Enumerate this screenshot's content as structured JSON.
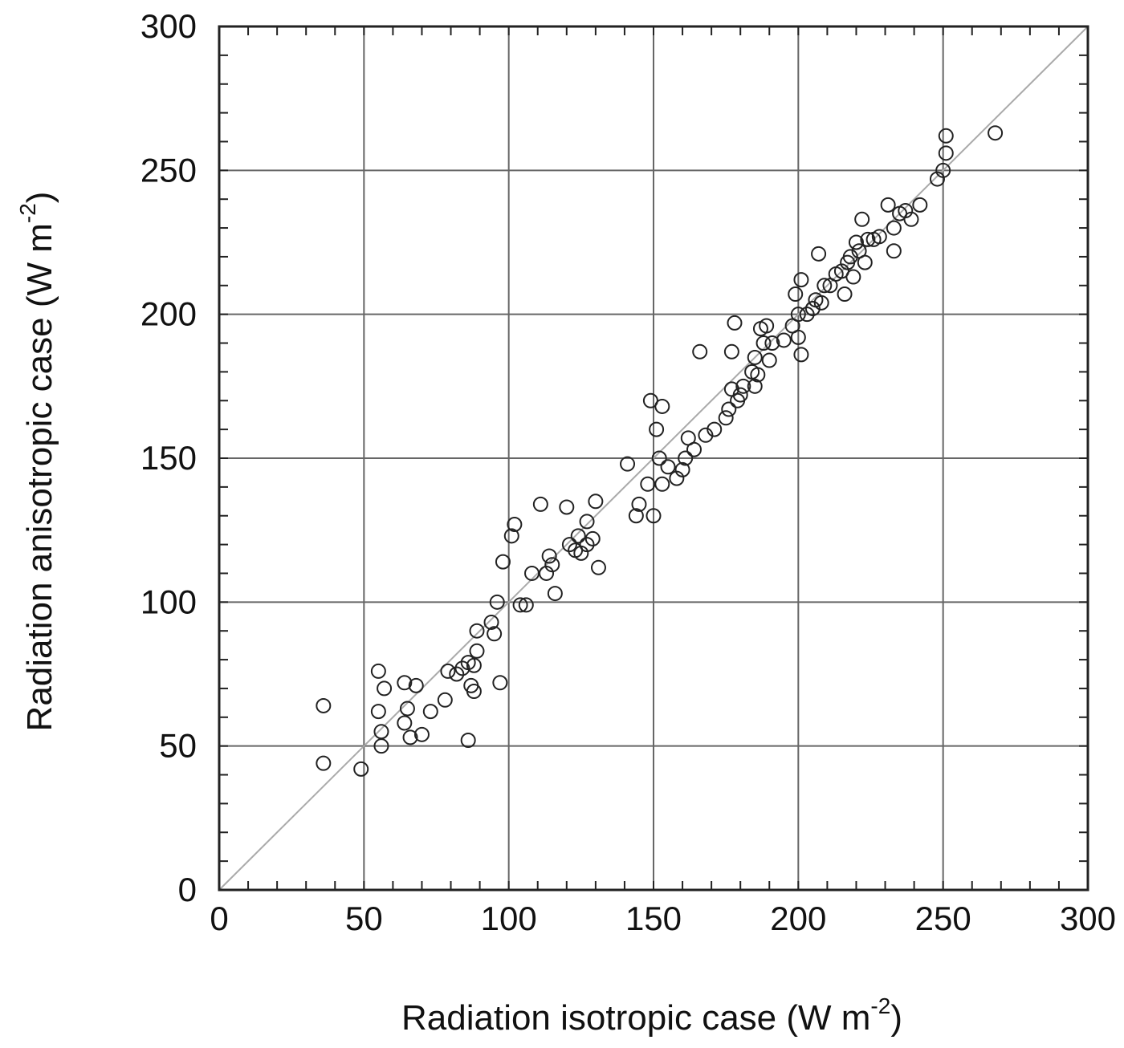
{
  "chart_data": {
    "type": "scatter",
    "xlabel": {
      "main": "Radiation isotropic case (W m",
      "sup": "-2",
      "close": ")"
    },
    "ylabel": {
      "main": "Radiation anisotropic case (W m",
      "sup": "-2",
      "close": ")"
    },
    "xlim": [
      0,
      300
    ],
    "ylim": [
      0,
      300
    ],
    "x_ticks": [
      0,
      50,
      100,
      150,
      200,
      250,
      300
    ],
    "y_ticks": [
      0,
      50,
      100,
      150,
      200,
      250,
      300
    ],
    "x_minor_step": 10,
    "y_minor_step": 10,
    "grid": true,
    "reference_line": "y = x",
    "marker": "open-circle",
    "colors": {
      "grid": "#666666",
      "frame": "#222222",
      "reference": "#aaaaaa",
      "marker": "#222222"
    },
    "points": [
      [
        36,
        64
      ],
      [
        36,
        44
      ],
      [
        49,
        42
      ],
      [
        55,
        76
      ],
      [
        55,
        62
      ],
      [
        56,
        55
      ],
      [
        56,
        50
      ],
      [
        57,
        70
      ],
      [
        64,
        72
      ],
      [
        64,
        58
      ],
      [
        65,
        63
      ],
      [
        66,
        53
      ],
      [
        68,
        71
      ],
      [
        70,
        54
      ],
      [
        73,
        62
      ],
      [
        78,
        66
      ],
      [
        79,
        76
      ],
      [
        82,
        75
      ],
      [
        84,
        77
      ],
      [
        86,
        52
      ],
      [
        86,
        79
      ],
      [
        87,
        71
      ],
      [
        88,
        78
      ],
      [
        88,
        69
      ],
      [
        89,
        90
      ],
      [
        89,
        83
      ],
      [
        94,
        93
      ],
      [
        95,
        89
      ],
      [
        96,
        100
      ],
      [
        97,
        72
      ],
      [
        98,
        114
      ],
      [
        101,
        123
      ],
      [
        102,
        127
      ],
      [
        104,
        99
      ],
      [
        106,
        99
      ],
      [
        108,
        110
      ],
      [
        111,
        134
      ],
      [
        113,
        110
      ],
      [
        114,
        116
      ],
      [
        115,
        113
      ],
      [
        116,
        103
      ],
      [
        120,
        133
      ],
      [
        121,
        120
      ],
      [
        123,
        118
      ],
      [
        124,
        123
      ],
      [
        125,
        117
      ],
      [
        127,
        128
      ],
      [
        127,
        120
      ],
      [
        129,
        122
      ],
      [
        130,
        135
      ],
      [
        131,
        112
      ],
      [
        141,
        148
      ],
      [
        144,
        130
      ],
      [
        145,
        134
      ],
      [
        148,
        141
      ],
      [
        149,
        170
      ],
      [
        150,
        130
      ],
      [
        151,
        160
      ],
      [
        152,
        150
      ],
      [
        153,
        141
      ],
      [
        153,
        168
      ],
      [
        155,
        147
      ],
      [
        158,
        143
      ],
      [
        160,
        146
      ],
      [
        161,
        150
      ],
      [
        162,
        157
      ],
      [
        164,
        153
      ],
      [
        166,
        187
      ],
      [
        168,
        158
      ],
      [
        171,
        160
      ],
      [
        175,
        164
      ],
      [
        176,
        167
      ],
      [
        177,
        174
      ],
      [
        177,
        187
      ],
      [
        178,
        197
      ],
      [
        179,
        170
      ],
      [
        180,
        172
      ],
      [
        181,
        175
      ],
      [
        184,
        180
      ],
      [
        185,
        175
      ],
      [
        185,
        185
      ],
      [
        186,
        179
      ],
      [
        187,
        195
      ],
      [
        188,
        190
      ],
      [
        189,
        196
      ],
      [
        190,
        184
      ],
      [
        191,
        190
      ],
      [
        195,
        191
      ],
      [
        198,
        196
      ],
      [
        199,
        207
      ],
      [
        200,
        192
      ],
      [
        200,
        200
      ],
      [
        201,
        186
      ],
      [
        201,
        212
      ],
      [
        203,
        200
      ],
      [
        205,
        202
      ],
      [
        206,
        205
      ],
      [
        207,
        221
      ],
      [
        208,
        204
      ],
      [
        209,
        210
      ],
      [
        211,
        210
      ],
      [
        213,
        214
      ],
      [
        215,
        215
      ],
      [
        216,
        207
      ],
      [
        217,
        218
      ],
      [
        218,
        220
      ],
      [
        219,
        213
      ],
      [
        220,
        225
      ],
      [
        221,
        222
      ],
      [
        222,
        233
      ],
      [
        223,
        218
      ],
      [
        224,
        226
      ],
      [
        226,
        226
      ],
      [
        228,
        227
      ],
      [
        231,
        238
      ],
      [
        233,
        230
      ],
      [
        233,
        222
      ],
      [
        235,
        235
      ],
      [
        237,
        236
      ],
      [
        239,
        233
      ],
      [
        242,
        238
      ],
      [
        248,
        247
      ],
      [
        250,
        250
      ],
      [
        251,
        256
      ],
      [
        251,
        262
      ],
      [
        268,
        263
      ]
    ]
  }
}
